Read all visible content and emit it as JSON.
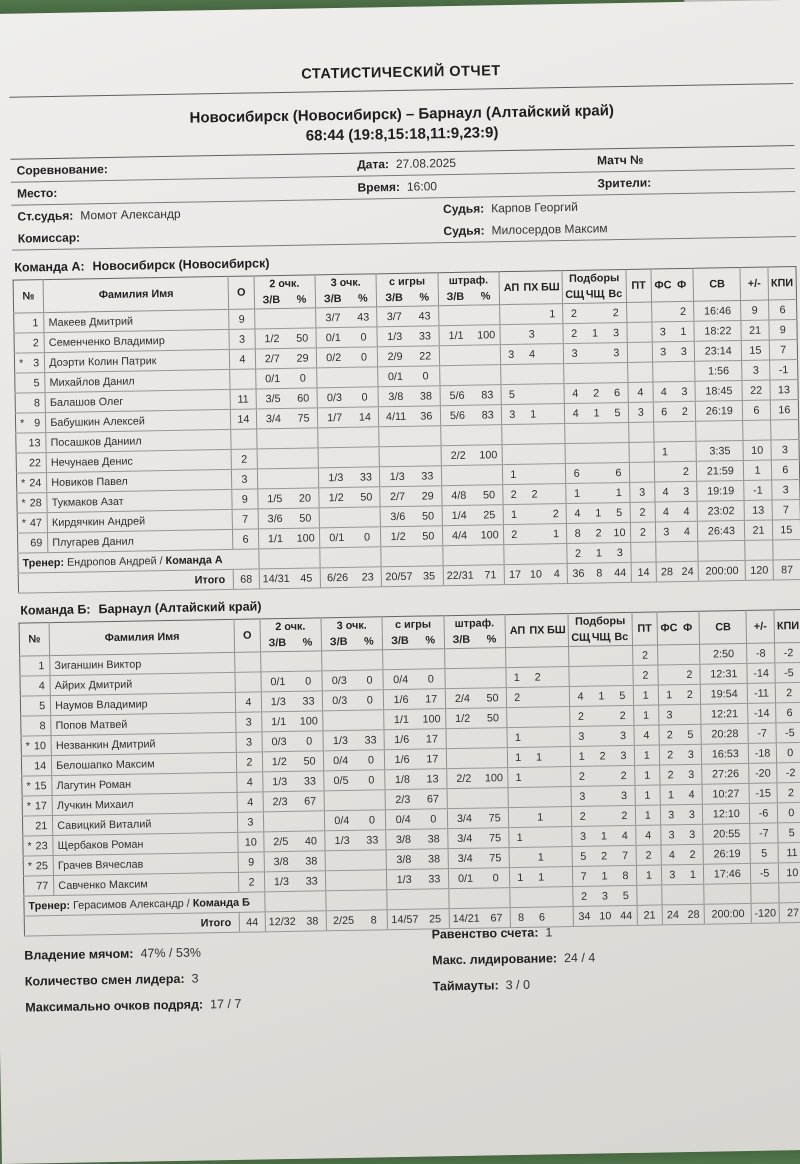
{
  "report": {
    "title": "СТАТИСТИЧЕСКИЙ ОТЧЕТ",
    "matchup": "Новосибирск (Новосибирск)   –  Барнаул (Алтайский край)",
    "score": "68:44 (19:8,15:18,11:9,23:9)",
    "info": {
      "competition_label": "Соревнование:",
      "date_label": "Дата:",
      "date": "27.08.2025",
      "match_no_label": "Матч №",
      "place_label": "Место:",
      "time_label": "Время:",
      "time": "16:00",
      "spectators_label": "Зрители:",
      "chief_ref_label": "Ст.судья:",
      "chief_ref": "Момот Александр",
      "ref1_label": "Судья:",
      "ref1": "Карпов Георгий",
      "commissar_label": "Комиссар:",
      "ref2_label": "Судья:",
      "ref2": "Милосердов Максим"
    }
  },
  "headers": {
    "num": "№",
    "name": "Фамилия Имя",
    "o": "О",
    "g2": "2 очк.",
    "g3": "3 очк.",
    "gfg": "с игры",
    "gft": "штраф.",
    "zv": "З/В",
    "pct": "%",
    "ap": "АП",
    "ph": "ПХ",
    "bsh": "БШ",
    "rebounds": "Подборы",
    "rs": "СЩ",
    "rc": "ЧЩ",
    "rt": "Вс",
    "pt": "ПТ",
    "fs": "ФС",
    "f": "Ф",
    "sv": "СВ",
    "pm": "+/-",
    "kpi": "КПИ"
  },
  "team_a": {
    "label": "Команда А:",
    "name": "Новосибирск (Новосибирск)",
    "coach_label": "Тренер:",
    "coach_name": "Ендропов Андрей",
    "coach_sep": "/",
    "coach_team": "Команда А",
    "total_label": "Итого",
    "players": [
      {
        "star": "",
        "num": "1",
        "name": "Макеев Дмитрий",
        "o": "9",
        "p2m": "",
        "p2p": "",
        "p3m": "3/7",
        "p3p": "43",
        "fgm": "3/7",
        "fgp": "43",
        "ftm": "",
        "ftp": "",
        "ast": "",
        "stl": "",
        "blk": "1",
        "rs": "2",
        "rc": "",
        "rt": "2",
        "to": "",
        "fd": "",
        "f": "2",
        "time": "16:46",
        "pm": "9",
        "kpi": "6"
      },
      {
        "star": "",
        "num": "2",
        "name": "Семенченко Владимир",
        "o": "3",
        "p2m": "1/2",
        "p2p": "50",
        "p3m": "0/1",
        "p3p": "0",
        "fgm": "1/3",
        "fgp": "33",
        "ftm": "1/1",
        "ftp": "100",
        "ast": "",
        "stl": "3",
        "blk": "",
        "rs": "2",
        "rc": "1",
        "rt": "3",
        "to": "",
        "fd": "3",
        "f": "1",
        "time": "18:22",
        "pm": "21",
        "kpi": "9"
      },
      {
        "star": "*",
        "num": "3",
        "name": "Доэрти Колин Патрик",
        "o": "4",
        "p2m": "2/7",
        "p2p": "29",
        "p3m": "0/2",
        "p3p": "0",
        "fgm": "2/9",
        "fgp": "22",
        "ftm": "",
        "ftp": "",
        "ast": "3",
        "stl": "4",
        "blk": "",
        "rs": "3",
        "rc": "",
        "rt": "3",
        "to": "",
        "fd": "3",
        "f": "3",
        "time": "23:14",
        "pm": "15",
        "kpi": "7"
      },
      {
        "star": "",
        "num": "5",
        "name": "Михайлов Данил",
        "o": "",
        "p2m": "0/1",
        "p2p": "0",
        "p3m": "",
        "p3p": "",
        "fgm": "0/1",
        "fgp": "0",
        "ftm": "",
        "ftp": "",
        "ast": "",
        "stl": "",
        "blk": "",
        "rs": "",
        "rc": "",
        "rt": "",
        "to": "",
        "fd": "",
        "f": "",
        "time": "1:56",
        "pm": "3",
        "kpi": "-1"
      },
      {
        "star": "",
        "num": "8",
        "name": "Балашов Олег",
        "o": "11",
        "p2m": "3/5",
        "p2p": "60",
        "p3m": "0/3",
        "p3p": "0",
        "fgm": "3/8",
        "fgp": "38",
        "ftm": "5/6",
        "ftp": "83",
        "ast": "5",
        "stl": "",
        "blk": "",
        "rs": "4",
        "rc": "2",
        "rt": "6",
        "to": "4",
        "fd": "4",
        "f": "3",
        "time": "18:45",
        "pm": "22",
        "kpi": "13"
      },
      {
        "star": "*",
        "num": "9",
        "name": "Бабушкин Алексей",
        "o": "14",
        "p2m": "3/4",
        "p2p": "75",
        "p3m": "1/7",
        "p3p": "14",
        "fgm": "4/11",
        "fgp": "36",
        "ftm": "5/6",
        "ftp": "83",
        "ast": "3",
        "stl": "1",
        "blk": "",
        "rs": "4",
        "rc": "1",
        "rt": "5",
        "to": "3",
        "fd": "6",
        "f": "2",
        "time": "26:19",
        "pm": "6",
        "kpi": "16"
      },
      {
        "star": "",
        "num": "13",
        "name": "Посашков Даниил",
        "o": "",
        "p2m": "",
        "p2p": "",
        "p3m": "",
        "p3p": "",
        "fgm": "",
        "fgp": "",
        "ftm": "",
        "ftp": "",
        "ast": "",
        "stl": "",
        "blk": "",
        "rs": "",
        "rc": "",
        "rt": "",
        "to": "",
        "fd": "",
        "f": "",
        "time": "",
        "pm": "",
        "kpi": ""
      },
      {
        "star": "",
        "num": "22",
        "name": "Нечунаев Денис",
        "o": "2",
        "p2m": "",
        "p2p": "",
        "p3m": "",
        "p3p": "",
        "fgm": "",
        "fgp": "",
        "ftm": "2/2",
        "ftp": "100",
        "ast": "",
        "stl": "",
        "blk": "",
        "rs": "",
        "rc": "",
        "rt": "",
        "to": "",
        "fd": "1",
        "f": "",
        "time": "3:35",
        "pm": "10",
        "kpi": "3"
      },
      {
        "star": "*",
        "num": "24",
        "name": "Новиков Павел",
        "o": "3",
        "p2m": "",
        "p2p": "",
        "p3m": "1/3",
        "p3p": "33",
        "fgm": "1/3",
        "fgp": "33",
        "ftm": "",
        "ftp": "",
        "ast": "1",
        "stl": "",
        "blk": "",
        "rs": "6",
        "rc": "",
        "rt": "6",
        "to": "",
        "fd": "",
        "f": "2",
        "time": "21:59",
        "pm": "1",
        "kpi": "6"
      },
      {
        "star": "*",
        "num": "28",
        "name": "Тукмаков Азат",
        "o": "9",
        "p2m": "1/5",
        "p2p": "20",
        "p3m": "1/2",
        "p3p": "50",
        "fgm": "2/7",
        "fgp": "29",
        "ftm": "4/8",
        "ftp": "50",
        "ast": "2",
        "stl": "2",
        "blk": "",
        "rs": "1",
        "rc": "",
        "rt": "1",
        "to": "3",
        "fd": "4",
        "f": "3",
        "time": "19:19",
        "pm": "-1",
        "kpi": "3"
      },
      {
        "star": "*",
        "num": "47",
        "name": "Кирдячкин Андрей",
        "o": "7",
        "p2m": "3/6",
        "p2p": "50",
        "p3m": "",
        "p3p": "",
        "fgm": "3/6",
        "fgp": "50",
        "ftm": "1/4",
        "ftp": "25",
        "ast": "1",
        "stl": "",
        "blk": "2",
        "rs": "4",
        "rc": "1",
        "rt": "5",
        "to": "2",
        "fd": "4",
        "f": "4",
        "time": "23:02",
        "pm": "13",
        "kpi": "7"
      },
      {
        "star": "",
        "num": "69",
        "name": "Плугарев Данил",
        "o": "6",
        "p2m": "1/1",
        "p2p": "100",
        "p3m": "0/1",
        "p3p": "0",
        "fgm": "1/2",
        "fgp": "50",
        "ftm": "4/4",
        "ftp": "100",
        "ast": "2",
        "stl": "",
        "blk": "1",
        "rs": "8",
        "rc": "2",
        "rt": "10",
        "to": "2",
        "fd": "3",
        "f": "4",
        "time": "26:43",
        "pm": "21",
        "kpi": "15"
      }
    ],
    "coach_rebounds": {
      "rs": "2",
      "rc": "1",
      "rt": "3"
    },
    "totals": {
      "o": "68",
      "p2m": "14/31",
      "p2p": "45",
      "p3m": "6/26",
      "p3p": "23",
      "fgm": "20/57",
      "fgp": "35",
      "ftm": "22/31",
      "ftp": "71",
      "ast": "17",
      "stl": "10",
      "blk": "4",
      "rs": "36",
      "rc": "8",
      "rt": "44",
      "to": "14",
      "fd": "28",
      "f": "24",
      "time": "200:00",
      "pm": "120",
      "kpi": "87"
    }
  },
  "team_b": {
    "label": "Команда Б:",
    "name": "Барнаул (Алтайский край)",
    "coach_label": "Тренер:",
    "coach_name": "Герасимов Александр",
    "coach_sep": "/",
    "coach_team": "Команда Б",
    "total_label": "Итого",
    "players": [
      {
        "star": "",
        "num": "1",
        "name": "Зиганшин Виктор",
        "o": "",
        "p2m": "",
        "p2p": "",
        "p3m": "",
        "p3p": "",
        "fgm": "",
        "fgp": "",
        "ftm": "",
        "ftp": "",
        "ast": "",
        "stl": "",
        "blk": "",
        "rs": "",
        "rc": "",
        "rt": "",
        "to": "2",
        "fd": "",
        "f": "",
        "time": "2:50",
        "pm": "-8",
        "kpi": "-2"
      },
      {
        "star": "",
        "num": "4",
        "name": "Айрих Дмитрий",
        "o": "",
        "p2m": "0/1",
        "p2p": "0",
        "p3m": "0/3",
        "p3p": "0",
        "fgm": "0/4",
        "fgp": "0",
        "ftm": "",
        "ftp": "",
        "ast": "1",
        "stl": "2",
        "blk": "",
        "rs": "",
        "rc": "",
        "rt": "",
        "to": "2",
        "fd": "",
        "f": "2",
        "time": "12:31",
        "pm": "-14",
        "kpi": "-5"
      },
      {
        "star": "",
        "num": "5",
        "name": "Наумов Владимир",
        "o": "4",
        "p2m": "1/3",
        "p2p": "33",
        "p3m": "0/3",
        "p3p": "0",
        "fgm": "1/6",
        "fgp": "17",
        "ftm": "2/4",
        "ftp": "50",
        "ast": "2",
        "stl": "",
        "blk": "",
        "rs": "4",
        "rc": "1",
        "rt": "5",
        "to": "1",
        "fd": "1",
        "f": "2",
        "time": "19:54",
        "pm": "-11",
        "kpi": "2"
      },
      {
        "star": "",
        "num": "8",
        "name": "Попов Матвей",
        "o": "3",
        "p2m": "1/1",
        "p2p": "100",
        "p3m": "",
        "p3p": "",
        "fgm": "1/1",
        "fgp": "100",
        "ftm": "1/2",
        "ftp": "50",
        "ast": "",
        "stl": "",
        "blk": "",
        "rs": "2",
        "rc": "",
        "rt": "2",
        "to": "1",
        "fd": "3",
        "f": "",
        "time": "12:21",
        "pm": "-14",
        "kpi": "6"
      },
      {
        "star": "*",
        "num": "10",
        "name": "Незванкин Дмитрий",
        "o": "3",
        "p2m": "0/3",
        "p2p": "0",
        "p3m": "1/3",
        "p3p": "33",
        "fgm": "1/6",
        "fgp": "17",
        "ftm": "",
        "ftp": "",
        "ast": "1",
        "stl": "",
        "blk": "",
        "rs": "3",
        "rc": "",
        "rt": "3",
        "to": "4",
        "fd": "2",
        "f": "5",
        "time": "20:28",
        "pm": "-7",
        "kpi": "-5"
      },
      {
        "star": "",
        "num": "14",
        "name": "Белошапко Максим",
        "o": "2",
        "p2m": "1/2",
        "p2p": "50",
        "p3m": "0/4",
        "p3p": "0",
        "fgm": "1/6",
        "fgp": "17",
        "ftm": "",
        "ftp": "",
        "ast": "1",
        "stl": "1",
        "blk": "",
        "rs": "1",
        "rc": "2",
        "rt": "3",
        "to": "1",
        "fd": "2",
        "f": "3",
        "time": "16:53",
        "pm": "-18",
        "kpi": "0"
      },
      {
        "star": "*",
        "num": "15",
        "name": "Лагутин Роман",
        "o": "4",
        "p2m": "1/3",
        "p2p": "33",
        "p3m": "0/5",
        "p3p": "0",
        "fgm": "1/8",
        "fgp": "13",
        "ftm": "2/2",
        "ftp": "100",
        "ast": "1",
        "stl": "",
        "blk": "",
        "rs": "2",
        "rc": "",
        "rt": "2",
        "to": "1",
        "fd": "2",
        "f": "3",
        "time": "27:26",
        "pm": "-20",
        "kpi": "-2"
      },
      {
        "star": "*",
        "num": "17",
        "name": "Лучкин Михаил",
        "o": "4",
        "p2m": "2/3",
        "p2p": "67",
        "p3m": "",
        "p3p": "",
        "fgm": "2/3",
        "fgp": "67",
        "ftm": "",
        "ftp": "",
        "ast": "",
        "stl": "",
        "blk": "",
        "rs": "3",
        "rc": "",
        "rt": "3",
        "to": "1",
        "fd": "1",
        "f": "4",
        "time": "10:27",
        "pm": "-15",
        "kpi": "2"
      },
      {
        "star": "",
        "num": "21",
        "name": "Савицкий Виталий",
        "o": "3",
        "p2m": "",
        "p2p": "",
        "p3m": "0/4",
        "p3p": "0",
        "fgm": "0/4",
        "fgp": "0",
        "ftm": "3/4",
        "ftp": "75",
        "ast": "",
        "stl": "1",
        "blk": "",
        "rs": "2",
        "rc": "",
        "rt": "2",
        "to": "1",
        "fd": "3",
        "f": "3",
        "time": "12:10",
        "pm": "-6",
        "kpi": "0"
      },
      {
        "star": "*",
        "num": "23",
        "name": "Щербаков Роман",
        "o": "10",
        "p2m": "2/5",
        "p2p": "40",
        "p3m": "1/3",
        "p3p": "33",
        "fgm": "3/8",
        "fgp": "38",
        "ftm": "3/4",
        "ftp": "75",
        "ast": "1",
        "stl": "",
        "blk": "",
        "rs": "3",
        "rc": "1",
        "rt": "4",
        "to": "4",
        "fd": "3",
        "f": "3",
        "time": "20:55",
        "pm": "-7",
        "kpi": "5"
      },
      {
        "star": "*",
        "num": "25",
        "name": "Грачев Вячеслав",
        "o": "9",
        "p2m": "3/8",
        "p2p": "38",
        "p3m": "",
        "p3p": "",
        "fgm": "3/8",
        "fgp": "38",
        "ftm": "3/4",
        "ftp": "75",
        "ast": "",
        "stl": "1",
        "blk": "",
        "rs": "5",
        "rc": "2",
        "rt": "7",
        "to": "2",
        "fd": "4",
        "f": "2",
        "time": "26:19",
        "pm": "5",
        "kpi": "11"
      },
      {
        "star": "",
        "num": "77",
        "name": "Савченко Максим",
        "o": "2",
        "p2m": "1/3",
        "p2p": "33",
        "p3m": "",
        "p3p": "",
        "fgm": "1/3",
        "fgp": "33",
        "ftm": "0/1",
        "ftp": "0",
        "ast": "1",
        "stl": "1",
        "blk": "",
        "rs": "7",
        "rc": "1",
        "rt": "8",
        "to": "1",
        "fd": "3",
        "f": "1",
        "time": "17:46",
        "pm": "-5",
        "kpi": "10"
      }
    ],
    "coach_rebounds": {
      "rs": "2",
      "rc": "3",
      "rt": "5"
    },
    "totals": {
      "o": "44",
      "p2m": "12/32",
      "p2p": "38",
      "p3m": "2/25",
      "p3p": "8",
      "fgm": "14/57",
      "fgp": "25",
      "ftm": "14/21",
      "ftp": "67",
      "ast": "8",
      "stl": "6",
      "blk": "",
      "rs": "34",
      "rc": "10",
      "rt": "44",
      "to": "21",
      "fd": "24",
      "f": "28",
      "time": "200:00",
      "pm": "-120",
      "kpi": "27"
    }
  },
  "footer": {
    "left": [
      {
        "label": "Владение мячом:",
        "value": "47% / 53%"
      },
      {
        "label": "Количество смен лидера:",
        "value": "3"
      },
      {
        "label": "Максимально очков подряд:",
        "value": "17 / 7"
      }
    ],
    "right": [
      {
        "label": "Равенство счета:",
        "value": "1"
      },
      {
        "label": "Макс. лидирование:",
        "value": "24 / 4"
      },
      {
        "label": "Таймауты:",
        "value": "3 / 0"
      }
    ]
  }
}
